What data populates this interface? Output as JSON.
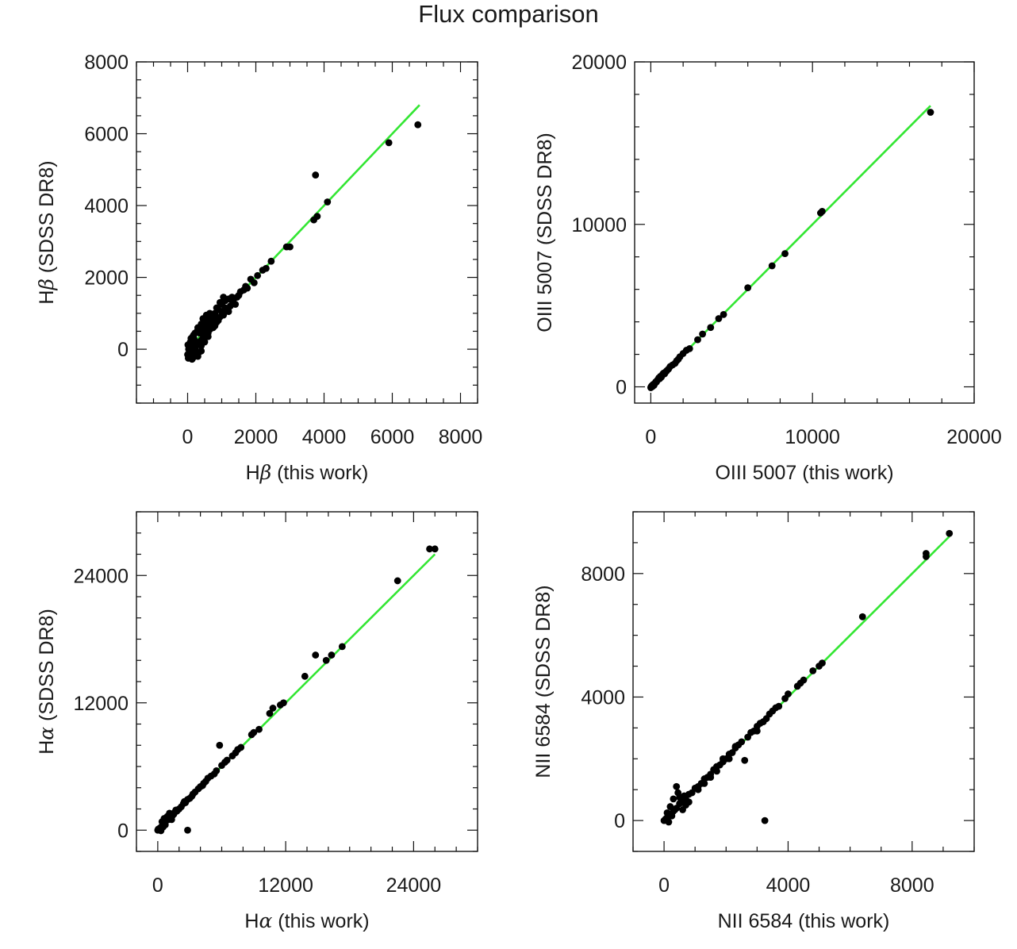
{
  "title": "Flux comparison",
  "colors": {
    "points": "#000000",
    "fit_line": "#33e633",
    "frame": "#111111"
  },
  "chart_data": [
    {
      "type": "scatter",
      "position": "top-left",
      "xlabel": {
        "pre": "H",
        "greek": "β",
        "post": " (this work)"
      },
      "ylabel": {
        "pre": "H",
        "greek": "β",
        "post": " (SDSS DR8)"
      },
      "xlim": [
        -1500,
        8500
      ],
      "ylim": [
        -1500,
        8000
      ],
      "xticks": [
        0,
        2000,
        4000,
        6000,
        8000
      ],
      "yticks": [
        0,
        2000,
        4000,
        6000,
        8000
      ],
      "xminor": 500,
      "yminor": 500,
      "fit_line": [
        [
          0,
          0
        ],
        [
          6800,
          6800
        ]
      ],
      "points": [
        [
          6750,
          6250
        ],
        [
          5900,
          5750
        ],
        [
          3750,
          4850
        ],
        [
          4100,
          4100
        ],
        [
          3800,
          3700
        ],
        [
          3700,
          3600
        ],
        [
          3000,
          2850
        ],
        [
          2900,
          2850
        ],
        [
          2450,
          2450
        ],
        [
          2300,
          2250
        ],
        [
          2200,
          2200
        ],
        [
          2050,
          2050
        ],
        [
          1950,
          1850
        ],
        [
          1850,
          1950
        ],
        [
          1750,
          1700
        ],
        [
          1650,
          1650
        ],
        [
          1500,
          1500
        ],
        [
          1350,
          1400
        ],
        [
          1400,
          1250
        ],
        [
          1250,
          1200
        ],
        [
          1200,
          1050
        ],
        [
          1100,
          1150
        ],
        [
          1050,
          950
        ],
        [
          950,
          900
        ],
        [
          900,
          800
        ],
        [
          850,
          750
        ],
        [
          800,
          650
        ],
        [
          750,
          600
        ],
        [
          700,
          700
        ],
        [
          650,
          550
        ],
        [
          600,
          450
        ],
        [
          550,
          400
        ],
        [
          500,
          350
        ],
        [
          450,
          300
        ],
        [
          400,
          250
        ],
        [
          350,
          200
        ],
        [
          300,
          150
        ],
        [
          250,
          100
        ],
        [
          200,
          50
        ],
        [
          150,
          0
        ],
        [
          100,
          -50
        ],
        [
          50,
          -100
        ],
        [
          0,
          -150
        ],
        [
          20,
          -250
        ],
        [
          150,
          -250
        ],
        [
          300,
          -200
        ],
        [
          250,
          100
        ],
        [
          180,
          400
        ],
        [
          220,
          450
        ],
        [
          350,
          500
        ],
        [
          500,
          600
        ],
        [
          600,
          750
        ],
        [
          700,
          900
        ],
        [
          800,
          1000
        ],
        [
          900,
          1100
        ],
        [
          1000,
          1250
        ],
        [
          1100,
          1350
        ],
        [
          1200,
          1400
        ],
        [
          1300,
          1450
        ],
        [
          1050,
          1450
        ],
        [
          950,
          1300
        ],
        [
          850,
          1150
        ],
        [
          650,
          1000
        ],
        [
          550,
          950
        ],
        [
          450,
          850
        ],
        [
          400,
          700
        ],
        [
          300,
          600
        ],
        [
          100,
          300
        ],
        [
          80,
          200
        ],
        [
          50,
          100
        ],
        [
          30,
          0
        ],
        [
          60,
          -200
        ],
        [
          200,
          -100
        ],
        [
          400,
          -50
        ],
        [
          250,
          -50
        ],
        [
          120,
          150
        ],
        [
          60,
          50
        ],
        [
          10,
          120
        ],
        [
          350,
          450
        ],
        [
          450,
          500
        ],
        [
          550,
          650
        ],
        [
          700,
          650
        ],
        [
          600,
          350
        ],
        [
          500,
          200
        ],
        [
          750,
          800
        ],
        [
          400,
          100
        ],
        [
          180,
          300
        ],
        [
          280,
          500
        ],
        [
          320,
          -100
        ],
        [
          130,
          -280
        ],
        [
          90,
          80
        ],
        [
          200,
          250
        ],
        [
          150,
          350
        ],
        [
          400,
          600
        ],
        [
          500,
          800
        ],
        [
          650,
          850
        ],
        [
          800,
          950
        ],
        [
          1000,
          1050
        ],
        [
          1150,
          1100
        ],
        [
          1300,
          1350
        ],
        [
          1450,
          1450
        ],
        [
          1550,
          1600
        ],
        [
          1700,
          1750
        ]
      ]
    },
    {
      "type": "scatter",
      "position": "top-right",
      "xlabel": {
        "pre": "OIII 5007 (this work)",
        "greek": "",
        "post": ""
      },
      "ylabel": {
        "pre": "OIII 5007 (SDSS DR8)",
        "greek": "",
        "post": ""
      },
      "xlim": [
        -1000,
        20000
      ],
      "ylim": [
        -1000,
        20000
      ],
      "xticks": [
        0,
        10000,
        20000
      ],
      "yticks": [
        0,
        10000,
        20000
      ],
      "xminor": 2000,
      "yminor": 2000,
      "fit_line": [
        [
          0,
          0
        ],
        [
          17300,
          17300
        ]
      ],
      "points": [
        [
          17300,
          16900
        ],
        [
          10600,
          10800
        ],
        [
          10500,
          10700
        ],
        [
          8300,
          8200
        ],
        [
          7500,
          7450
        ],
        [
          6000,
          6100
        ],
        [
          4500,
          4450
        ],
        [
          4200,
          4200
        ],
        [
          3700,
          3650
        ],
        [
          3200,
          3250
        ],
        [
          2900,
          2900
        ],
        [
          2400,
          2350
        ],
        [
          2200,
          2250
        ],
        [
          2000,
          2050
        ],
        [
          1800,
          1850
        ],
        [
          1700,
          1700
        ],
        [
          1600,
          1600
        ],
        [
          1500,
          1450
        ],
        [
          1350,
          1350
        ],
        [
          1200,
          1250
        ],
        [
          1100,
          1100
        ],
        [
          1000,
          1000
        ],
        [
          900,
          900
        ],
        [
          800,
          850
        ],
        [
          700,
          700
        ],
        [
          600,
          650
        ],
        [
          550,
          500
        ],
        [
          450,
          450
        ],
        [
          400,
          400
        ],
        [
          300,
          300
        ],
        [
          250,
          200
        ],
        [
          150,
          150
        ],
        [
          100,
          100
        ],
        [
          50,
          50
        ],
        [
          20,
          0
        ],
        [
          0,
          -50
        ],
        [
          100,
          20
        ],
        [
          200,
          100
        ],
        [
          350,
          300
        ],
        [
          500,
          550
        ],
        [
          650,
          600
        ],
        [
          750,
          800
        ],
        [
          850,
          800
        ],
        [
          950,
          950
        ]
      ]
    },
    {
      "type": "scatter",
      "position": "bottom-left",
      "xlabel": {
        "pre": "H",
        "greek": "α",
        "post": " (this work)"
      },
      "ylabel": {
        "pre": "H",
        "greek": "α",
        "post": " (SDSS DR8)"
      },
      "xlim": [
        -2000,
        30000
      ],
      "ylim": [
        -2000,
        30000
      ],
      "xticks": [
        0,
        12000,
        24000
      ],
      "yticks": [
        0,
        12000,
        24000
      ],
      "xminor": 2000,
      "yminor": 2000,
      "fit_line": [
        [
          0,
          0
        ],
        [
          26000,
          26000
        ]
      ],
      "points": [
        [
          25500,
          26500
        ],
        [
          26000,
          26500
        ],
        [
          22500,
          23500
        ],
        [
          17300,
          17300
        ],
        [
          16300,
          16500
        ],
        [
          15800,
          16000
        ],
        [
          14800,
          16500
        ],
        [
          13800,
          14500
        ],
        [
          11800,
          12000
        ],
        [
          11500,
          11800
        ],
        [
          10800,
          11500
        ],
        [
          10500,
          11000
        ],
        [
          9500,
          9500
        ],
        [
          9000,
          9200
        ],
        [
          8800,
          9000
        ],
        [
          7800,
          7800
        ],
        [
          7300,
          7300
        ],
        [
          7000,
          7000
        ],
        [
          6500,
          6600
        ],
        [
          6000,
          6100
        ],
        [
          5800,
          8000
        ],
        [
          5500,
          5600
        ],
        [
          5000,
          5100
        ],
        [
          4500,
          4600
        ],
        [
          4200,
          4200
        ],
        [
          4000,
          4100
        ],
        [
          3800,
          3900
        ],
        [
          3500,
          3600
        ],
        [
          3200,
          3200
        ],
        [
          3000,
          3000
        ],
        [
          2800,
          2900
        ],
        [
          2600,
          2600
        ],
        [
          2400,
          2500
        ],
        [
          2200,
          2200
        ],
        [
          2000,
          2000
        ],
        [
          1800,
          1800
        ],
        [
          1600,
          1700
        ],
        [
          1400,
          1400
        ],
        [
          1200,
          1200
        ],
        [
          1000,
          1000
        ],
        [
          800,
          900
        ],
        [
          600,
          600
        ],
        [
          400,
          400
        ],
        [
          200,
          200
        ],
        [
          100,
          50
        ],
        [
          0,
          0
        ],
        [
          50,
          100
        ],
        [
          300,
          -50
        ],
        [
          2800,
          0
        ],
        [
          900,
          1300
        ],
        [
          1100,
          1600
        ],
        [
          600,
          1100
        ],
        [
          400,
          800
        ],
        [
          1500,
          1500
        ],
        [
          1700,
          1900
        ],
        [
          2500,
          2700
        ],
        [
          3300,
          3400
        ],
        [
          4300,
          4400
        ],
        [
          4700,
          4900
        ],
        [
          5300,
          5300
        ],
        [
          6300,
          6400
        ],
        [
          7500,
          7600
        ],
        [
          1300,
          1000
        ],
        [
          700,
          500
        ],
        [
          500,
          300
        ]
      ]
    },
    {
      "type": "scatter",
      "position": "bottom-right",
      "xlabel": {
        "pre": "NII 6584 (this work)",
        "greek": "",
        "post": ""
      },
      "ylabel": {
        "pre": "NII 6584 (SDSS DR8)",
        "greek": "",
        "post": ""
      },
      "xlim": [
        -1000,
        10000
      ],
      "ylim": [
        -1000,
        10000
      ],
      "xticks": [
        0,
        4000,
        8000
      ],
      "yticks": [
        0,
        4000,
        8000
      ],
      "xminor": 1000,
      "yminor": 1000,
      "fit_line": [
        [
          0,
          0
        ],
        [
          9200,
          9200
        ]
      ],
      "points": [
        [
          9200,
          9300
        ],
        [
          8450,
          8650
        ],
        [
          8450,
          8550
        ],
        [
          6400,
          6600
        ],
        [
          5100,
          5100
        ],
        [
          5000,
          5000
        ],
        [
          4800,
          4850
        ],
        [
          4500,
          4550
        ],
        [
          4400,
          4450
        ],
        [
          4300,
          4350
        ],
        [
          4000,
          4100
        ],
        [
          3900,
          3950
        ],
        [
          3700,
          3700
        ],
        [
          3600,
          3650
        ],
        [
          3500,
          3550
        ],
        [
          3400,
          3450
        ],
        [
          3300,
          3300
        ],
        [
          3200,
          3200
        ],
        [
          3250,
          0
        ],
        [
          3100,
          3150
        ],
        [
          3000,
          3050
        ],
        [
          2900,
          2900
        ],
        [
          2800,
          2850
        ],
        [
          2600,
          1950
        ],
        [
          2500,
          2550
        ],
        [
          2400,
          2450
        ],
        [
          2300,
          2350
        ],
        [
          2200,
          2200
        ],
        [
          2100,
          2150
        ],
        [
          2000,
          2000
        ],
        [
          1900,
          1900
        ],
        [
          1800,
          1800
        ],
        [
          1700,
          1750
        ],
        [
          1600,
          1650
        ],
        [
          1500,
          1500
        ],
        [
          1400,
          1400
        ],
        [
          1300,
          1350
        ],
        [
          1200,
          1200
        ],
        [
          1100,
          1100
        ],
        [
          1000,
          1050
        ],
        [
          900,
          900
        ],
        [
          800,
          850
        ],
        [
          700,
          700
        ],
        [
          600,
          600
        ],
        [
          500,
          550
        ],
        [
          400,
          400
        ],
        [
          300,
          300
        ],
        [
          200,
          200
        ],
        [
          100,
          100
        ],
        [
          50,
          50
        ],
        [
          0,
          0
        ],
        [
          400,
          1100
        ],
        [
          450,
          900
        ],
        [
          300,
          700
        ],
        [
          500,
          750
        ],
        [
          350,
          350
        ],
        [
          600,
          350
        ],
        [
          700,
          500
        ],
        [
          800,
          600
        ],
        [
          250,
          150
        ],
        [
          150,
          -50
        ],
        [
          1100,
          1000
        ],
        [
          1300,
          1200
        ],
        [
          1500,
          1400
        ],
        [
          1700,
          1600
        ],
        [
          1900,
          2000
        ],
        [
          2100,
          2000
        ],
        [
          2300,
          2400
        ],
        [
          2700,
          2700
        ],
        [
          3000,
          2900
        ],
        [
          200,
          450
        ],
        [
          100,
          250
        ],
        [
          650,
          800
        ]
      ]
    }
  ]
}
